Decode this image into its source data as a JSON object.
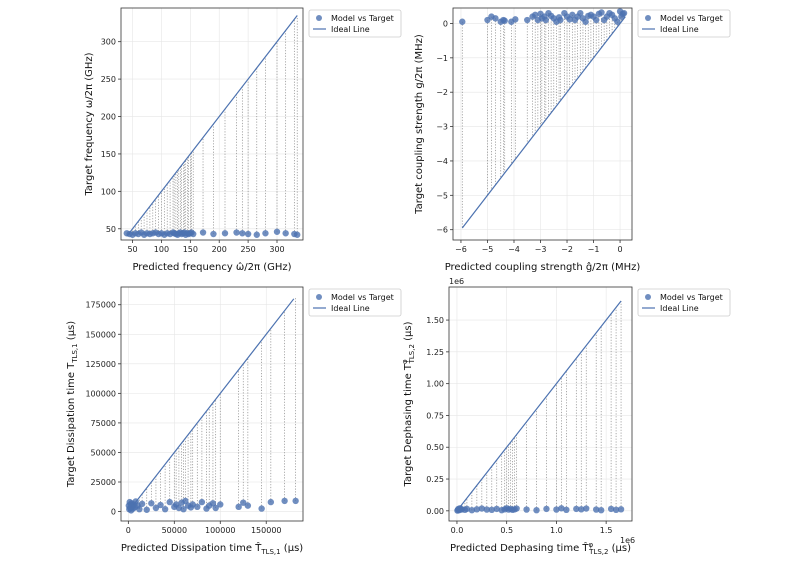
{
  "colors": {
    "point": "#4c72b0",
    "line": "#4c72b0",
    "connector": "#888888",
    "grid": "#e6e6e6",
    "axis": "#333333"
  },
  "legend": {
    "model": "Model vs Target",
    "ideal": "Ideal Line"
  },
  "chart_data": [
    {
      "type": "scatter",
      "id": "freq",
      "xlabel": "Predicted frequency ω̂/2π (GHz)",
      "ylabel": "Target frequency ω/2π (GHz)",
      "xlim": [
        30,
        345
      ],
      "ylim": [
        35,
        345
      ],
      "xticks": [
        50,
        100,
        150,
        200,
        250,
        300
      ],
      "yticks": [
        50,
        100,
        150,
        200,
        250,
        300
      ],
      "xtick_labels": [
        "50",
        "100",
        "150",
        "200",
        "250",
        "300"
      ],
      "ytick_labels": [
        "50",
        "100",
        "150",
        "200",
        "250",
        "300"
      ],
      "ideal_line": [
        [
          40,
          40
        ],
        [
          335,
          335
        ]
      ],
      "x": [
        40,
        45,
        50,
        55,
        60,
        65,
        70,
        75,
        80,
        85,
        90,
        95,
        100,
        105,
        110,
        115,
        120,
        122,
        125,
        128,
        130,
        133,
        135,
        138,
        140,
        142,
        145,
        147,
        150,
        152,
        155,
        172,
        190,
        210,
        230,
        240,
        250,
        265,
        280,
        300,
        315,
        330,
        335
      ],
      "y": [
        44,
        43,
        42,
        44,
        43,
        45,
        42,
        44,
        43,
        44,
        45,
        43,
        44,
        42,
        44,
        43,
        45,
        44,
        43,
        42,
        44,
        45,
        43,
        44,
        45,
        42,
        44,
        43,
        44,
        45,
        43,
        45,
        43,
        44,
        45,
        44,
        43,
        42,
        44,
        46,
        44,
        43,
        42
      ]
    },
    {
      "type": "scatter",
      "id": "coupling",
      "xlabel": "Predicted coupling strength ĝ/2π (MHz)",
      "ylabel": "Target coupling strength g/2π (MHz)",
      "xlim": [
        -6.3,
        0.45
      ],
      "ylim": [
        -6.3,
        0.45
      ],
      "xticks": [
        -6,
        -5,
        -4,
        -3,
        -2,
        -1,
        0
      ],
      "yticks": [
        -6,
        -5,
        -4,
        -3,
        -2,
        -1,
        0
      ],
      "xtick_labels": [
        "−6",
        "−5",
        "−4",
        "−3",
        "−2",
        "−1",
        "0"
      ],
      "ytick_labels": [
        "−6",
        "−5",
        "−4",
        "−3",
        "−2",
        "−1",
        "0"
      ],
      "ideal_line": [
        [
          -5.95,
          -5.95
        ],
        [
          0.2,
          0.2
        ]
      ],
      "x": [
        -5.95,
        -5.0,
        -4.85,
        -4.7,
        -4.5,
        -4.4,
        -4.35,
        -4.1,
        -3.95,
        -3.5,
        -3.3,
        -3.2,
        -3.1,
        -3.0,
        -2.95,
        -2.85,
        -2.8,
        -2.7,
        -2.6,
        -2.5,
        -2.4,
        -2.3,
        -2.25,
        -2.1,
        -2.0,
        -1.9,
        -1.8,
        -1.7,
        -1.6,
        -1.5,
        -1.4,
        -1.3,
        -1.2,
        -1.1,
        -1.0,
        -0.9,
        -0.8,
        -0.7,
        -0.6,
        -0.5,
        -0.4,
        -0.3,
        -0.2,
        -0.1,
        0.0,
        0.05,
        0.1,
        0.15
      ],
      "y": [
        0.05,
        0.1,
        0.2,
        0.15,
        0.05,
        0.1,
        0.08,
        0.05,
        0.12,
        0.1,
        0.2,
        0.25,
        0.1,
        0.28,
        0.15,
        0.2,
        0.1,
        0.3,
        0.22,
        0.15,
        0.05,
        0.18,
        0.1,
        0.3,
        0.2,
        0.12,
        0.25,
        0.1,
        0.2,
        0.3,
        0.15,
        0.05,
        0.22,
        0.25,
        0.2,
        0.1,
        0.28,
        0.32,
        0.1,
        0.2,
        0.3,
        0.25,
        0.15,
        0.05,
        0.35,
        0.2,
        0.28,
        0.3
      ]
    },
    {
      "type": "scatter",
      "id": "dissipation",
      "xlabel": "Predicted Dissipation time T̂_TLS,1 (μs)",
      "ylabel": "Target Dissipation time T_TLS,1 (μs)",
      "xlim": [
        -8000,
        190000
      ],
      "ylim": [
        -8000,
        190000
      ],
      "xticks": [
        0,
        50000,
        100000,
        150000
      ],
      "yticks": [
        0,
        25000,
        50000,
        75000,
        100000,
        125000,
        150000,
        175000
      ],
      "xtick_labels": [
        "0",
        "50000",
        "100000",
        "150000"
      ],
      "ytick_labels": [
        "0",
        "25000",
        "50000",
        "75000",
        "100000",
        "125000",
        "150000",
        "175000"
      ],
      "ideal_line": [
        [
          0,
          0
        ],
        [
          180000,
          180000
        ]
      ],
      "x": [
        500,
        1000,
        1500,
        2000,
        2500,
        3000,
        3500,
        4000,
        5000,
        6000,
        7000,
        8000,
        10000,
        12000,
        15000,
        20000,
        25000,
        30000,
        35000,
        40000,
        45000,
        50000,
        52000,
        55000,
        58000,
        60000,
        62000,
        65000,
        68000,
        70000,
        75000,
        80000,
        85000,
        88000,
        92000,
        95000,
        100000,
        120000,
        125000,
        130000,
        145000,
        155000,
        170000,
        182000
      ],
      "y": [
        5000,
        2000,
        8000,
        3000,
        6000,
        1000,
        7000,
        4000,
        2500,
        6000,
        3500,
        8500,
        5000,
        2000,
        6500,
        1500,
        7000,
        3000,
        5500,
        2000,
        8000,
        4000,
        6000,
        3000,
        7500,
        2000,
        9000,
        5000,
        3500,
        6000,
        4000,
        8000,
        2500,
        5000,
        7000,
        3000,
        6000,
        4000,
        7500,
        5000,
        2500,
        8000,
        9000,
        9000
      ]
    },
    {
      "type": "scatter",
      "id": "dephasing",
      "xlabel": "Predicted Dephasing time T̂^φ_TLS,2 (μs)",
      "ylabel": "Target Dephasing time T^φ_TLS,2 (μs)",
      "x_offset_label": "1e6",
      "y_offset_label": "1e6",
      "xlim": [
        -80000,
        1760000
      ],
      "ylim": [
        -80000,
        1760000
      ],
      "xticks": [
        0,
        500000,
        1000000,
        1500000
      ],
      "yticks": [
        0,
        250000,
        500000,
        750000,
        1000000,
        1250000,
        1500000
      ],
      "xtick_labels": [
        "0.0",
        "0.5",
        "1.0",
        "1.5"
      ],
      "ytick_labels": [
        "0.00",
        "0.25",
        "0.50",
        "0.75",
        "1.00",
        "1.25",
        "1.50"
      ],
      "ideal_line": [
        [
          0,
          0
        ],
        [
          1650000,
          1650000
        ]
      ],
      "x": [
        5000,
        10000,
        15000,
        20000,
        30000,
        40000,
        50000,
        80000,
        100000,
        150000,
        200000,
        250000,
        300000,
        350000,
        400000,
        450000,
        480000,
        500000,
        520000,
        540000,
        560000,
        580000,
        600000,
        700000,
        800000,
        900000,
        1000000,
        1050000,
        1100000,
        1200000,
        1250000,
        1300000,
        1400000,
        1450000,
        1550000,
        1600000,
        1650000
      ],
      "y": [
        2000,
        8000,
        15000,
        5000,
        20000,
        10000,
        12000,
        8000,
        15000,
        5000,
        12000,
        18000,
        10000,
        8000,
        15000,
        5000,
        12000,
        20000,
        10000,
        15000,
        8000,
        12000,
        18000,
        10000,
        5000,
        15000,
        10000,
        20000,
        8000,
        15000,
        12000,
        18000,
        10000,
        5000,
        15000,
        8000,
        12000
      ]
    }
  ]
}
